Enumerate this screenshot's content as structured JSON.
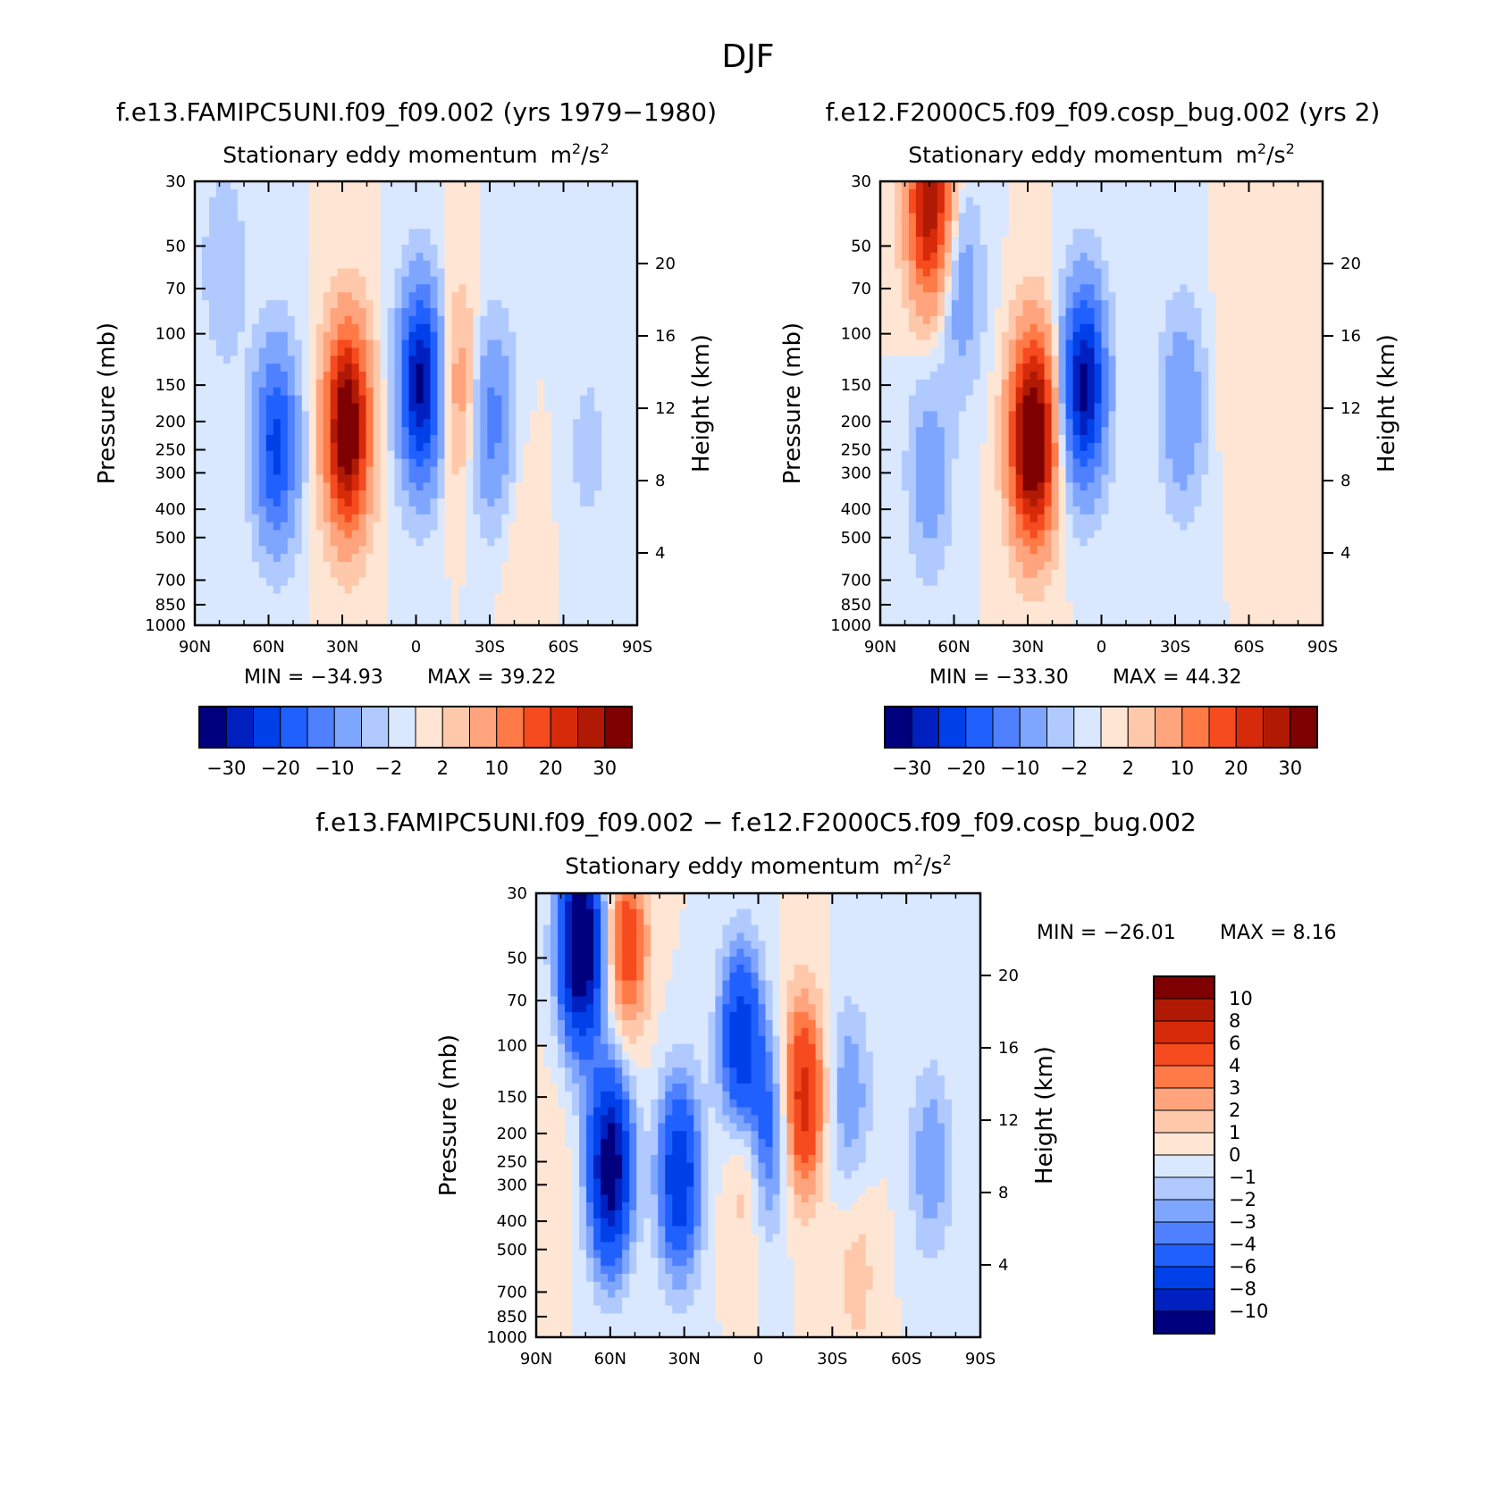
{
  "figure_title": "DJF",
  "chart_data": [
    {
      "type": "heatmap",
      "case_title": "f.e13.FAMIPC5UNI.f09_f09.002 (yrs 1979−1980)",
      "title": "Stationary eddy momentum",
      "units_base": "m",
      "units_sup": "2",
      "units_sep": "/s",
      "units_sup2": "2",
      "xlabel": "",
      "ylabel": "Pressure (mb)",
      "ylabel_right": "Height (km)",
      "x_ticks": [
        "90N",
        "60N",
        "30N",
        "0",
        "30S",
        "60S",
        "90S"
      ],
      "x_values": [
        90,
        60,
        30,
        0,
        -30,
        -60,
        -90
      ],
      "y_ticks": [
        "30",
        "50",
        "70",
        "100",
        "150",
        "200",
        "250",
        "300",
        "400",
        "500",
        "700",
        "850",
        "1000"
      ],
      "y_values": [
        30,
        50,
        70,
        100,
        150,
        200,
        250,
        300,
        400,
        500,
        700,
        850,
        1000
      ],
      "ylim": [
        1000,
        30
      ],
      "height_ticks": [
        "20",
        "16",
        "12",
        "8",
        "4"
      ],
      "height_values": [
        20,
        16,
        12,
        8,
        4
      ],
      "min_label": "MIN = −34.93",
      "max_label": "MAX = 39.22",
      "min": -34.93,
      "max": 39.22,
      "colorbar_labels": [
        "−30",
        "−20",
        "−10",
        "−2",
        "2",
        "10",
        "20",
        "30"
      ],
      "features": [
        {
          "lat": 57,
          "p": 240,
          "value": -22
        },
        {
          "lat": 28,
          "p": 210,
          "value": 38
        },
        {
          "lat": -2,
          "p": 150,
          "value": -32
        },
        {
          "lat": -17,
          "p": 150,
          "value": 8
        },
        {
          "lat": -31,
          "p": 200,
          "value": -12
        },
        {
          "lat": 78,
          "p": 60,
          "value": -5
        },
        {
          "lat": -70,
          "p": 250,
          "value": -3
        },
        {
          "lat": -43,
          "p": 500,
          "value": 2
        }
      ]
    },
    {
      "type": "heatmap",
      "case_title": "f.e12.F2000C5.f09_f09.cosp_bug.002 (yrs 2)",
      "title": "Stationary eddy momentum",
      "units_base": "m",
      "units_sup": "2",
      "units_sep": "/s",
      "units_sup2": "2",
      "xlabel": "",
      "ylabel": "Pressure (mb)",
      "ylabel_right": "Height (km)",
      "x_ticks": [
        "90N",
        "60N",
        "30N",
        "0",
        "30S",
        "60S",
        "90S"
      ],
      "x_values": [
        90,
        60,
        30,
        0,
        -30,
        -60,
        -90
      ],
      "y_ticks": [
        "30",
        "50",
        "70",
        "100",
        "150",
        "200",
        "250",
        "300",
        "400",
        "500",
        "700",
        "850",
        "1000"
      ],
      "y_values": [
        30,
        50,
        70,
        100,
        150,
        200,
        250,
        300,
        400,
        500,
        700,
        850,
        1000
      ],
      "ylim": [
        1000,
        30
      ],
      "height_ticks": [
        "20",
        "16",
        "12",
        "8",
        "4"
      ],
      "height_values": [
        20,
        16,
        12,
        8,
        4
      ],
      "min_label": "MIN = −33.30",
      "max_label": "MAX = 44.32",
      "min": -33.3,
      "max": 44.32,
      "colorbar_labels": [
        "−30",
        "−20",
        "−10",
        "−2",
        "2",
        "10",
        "20",
        "30"
      ],
      "features": [
        {
          "lat": 70,
          "p": 35,
          "value": 30
        },
        {
          "lat": 57,
          "p": 70,
          "value": -8
        },
        {
          "lat": 70,
          "p": 300,
          "value": -8
        },
        {
          "lat": 28,
          "p": 230,
          "value": 42
        },
        {
          "lat": 7,
          "p": 150,
          "value": -32
        },
        {
          "lat": -33,
          "p": 180,
          "value": -10
        },
        {
          "lat": -55,
          "p": 120,
          "value": 2
        }
      ]
    },
    {
      "type": "heatmap",
      "case_title": "f.e13.FAMIPC5UNI.f09_f09.002 − f.e12.F2000C5.f09_f09.cosp_bug.002",
      "title": "Stationary eddy momentum",
      "units_base": "m",
      "units_sup": "2",
      "units_sep": "/s",
      "units_sup2": "2",
      "xlabel": "",
      "ylabel": "Pressure (mb)",
      "ylabel_right": "Height (km)",
      "x_ticks": [
        "90N",
        "60N",
        "30N",
        "0",
        "30S",
        "60S",
        "90S"
      ],
      "x_values": [
        90,
        60,
        30,
        0,
        -30,
        -60,
        -90
      ],
      "y_ticks": [
        "30",
        "50",
        "70",
        "100",
        "150",
        "200",
        "250",
        "300",
        "400",
        "500",
        "700",
        "850",
        "1000"
      ],
      "y_values": [
        30,
        50,
        70,
        100,
        150,
        200,
        250,
        300,
        400,
        500,
        700,
        850,
        1000
      ],
      "ylim": [
        1000,
        30
      ],
      "height_ticks": [
        "20",
        "16",
        "12",
        "8",
        "4"
      ],
      "height_values": [
        20,
        16,
        12,
        8,
        4
      ],
      "min_label": "MIN = −26.01",
      "max_label": "MAX = 8.16",
      "min": -26.01,
      "max": 8.16,
      "colorbar_labels": [
        "10",
        "8",
        "6",
        "4",
        "3",
        "2",
        "1",
        "0",
        "−1",
        "−2",
        "−3",
        "−4",
        "−6",
        "−8",
        "−10"
      ],
      "features": [
        {
          "lat": 72,
          "p": 45,
          "value": -14
        },
        {
          "lat": 60,
          "p": 260,
          "value": -12
        },
        {
          "lat": 32,
          "p": 280,
          "value": -8
        },
        {
          "lat": 7,
          "p": 100,
          "value": -8
        },
        {
          "lat": -4,
          "p": 200,
          "value": -5
        },
        {
          "lat": 53,
          "p": 45,
          "value": 5
        },
        {
          "lat": -18,
          "p": 150,
          "value": 7
        },
        {
          "lat": 5,
          "p": 230,
          "value": 3
        },
        {
          "lat": -37,
          "p": 150,
          "value": -3
        },
        {
          "lat": -70,
          "p": 250,
          "value": -3
        },
        {
          "lat": -40,
          "p": 600,
          "value": 1.5
        },
        {
          "lat": 85,
          "p": 300,
          "value": 1
        }
      ]
    }
  ],
  "colors": {
    "diverging": [
      "#00007f",
      "#0020bf",
      "#0040e8",
      "#2060ff",
      "#4f80ff",
      "#7fa6ff",
      "#b0c9ff",
      "#d9e8ff",
      "#ffe6d4",
      "#ffc8ab",
      "#ffa47c",
      "#ff7a46",
      "#f54b1f",
      "#d62a0a",
      "#b01a05",
      "#7f0000"
    ],
    "diff": [
      "#7f0000",
      "#b01a05",
      "#d62a0a",
      "#f54b1f",
      "#ff7a46",
      "#ffa47c",
      "#ffc8ab",
      "#ffe6d4",
      "#d9e8ff",
      "#b0c9ff",
      "#7fa6ff",
      "#4f80ff",
      "#2060ff",
      "#0040e8",
      "#0020bf",
      "#00007f"
    ]
  }
}
